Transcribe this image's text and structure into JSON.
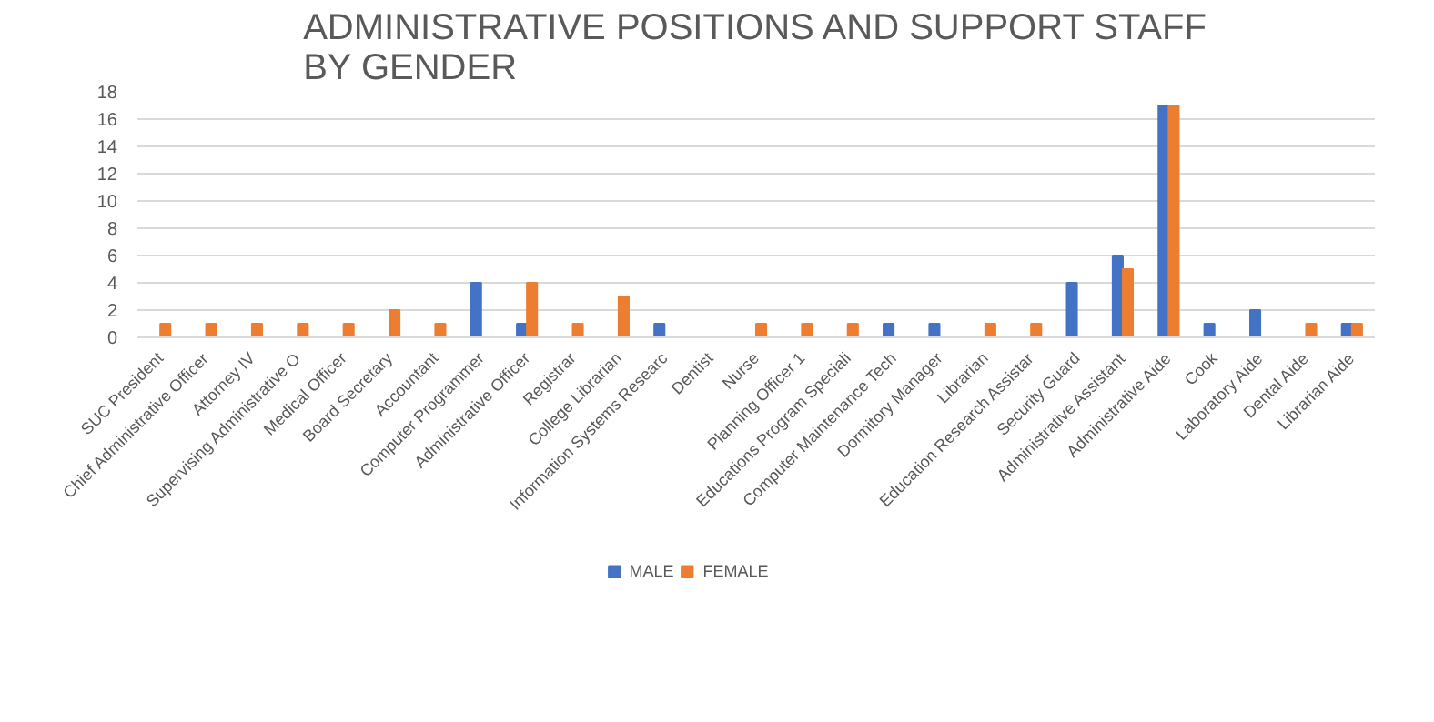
{
  "chart_data": {
    "type": "bar",
    "title": "ADMINISTRATIVE POSITIONS AND SUPPORT STAFF\nBY GENDER",
    "categories": [
      "SUC President",
      "Chief Administrative Officer",
      "Attorney IV",
      "Supervising Administrative O",
      "Medical Officer",
      "Board Secretary",
      "Accountant",
      "Computer Programmer",
      "Administrative Officer",
      "Registrar",
      "College Librarian",
      "Information Systems Researc",
      "Dentist",
      "Nurse",
      "Planning Officer 1",
      "Educations Program Speciali",
      "Computer Maintenance Tech",
      "Dormitory Manager",
      "Librarian",
      "Education Research Assistar",
      "Security Guard",
      "Administrative Assistant",
      "Administrative Aide",
      "Cook",
      "Laboratory Aide",
      "Dental Aide",
      "Librarian Aide"
    ],
    "series": [
      {
        "name": "MALE",
        "color": "#4472c4",
        "values": [
          null,
          null,
          null,
          null,
          null,
          null,
          null,
          4,
          1,
          null,
          null,
          1,
          null,
          null,
          null,
          null,
          1,
          1,
          null,
          null,
          4,
          6,
          17,
          1,
          2,
          null,
          1
        ]
      },
      {
        "name": "FEMALE",
        "color": "#ed7d31",
        "values": [
          1,
          1,
          1,
          1,
          1,
          2,
          1,
          null,
          4,
          1,
          3,
          null,
          null,
          1,
          1,
          1,
          null,
          null,
          1,
          1,
          null,
          5,
          17,
          null,
          null,
          1,
          1
        ]
      }
    ],
    "ylim": [
      0,
      18
    ],
    "yticks": [
      0,
      2,
      4,
      6,
      8,
      10,
      12,
      14,
      16,
      18
    ],
    "grid": "y",
    "legend": "bottom"
  }
}
